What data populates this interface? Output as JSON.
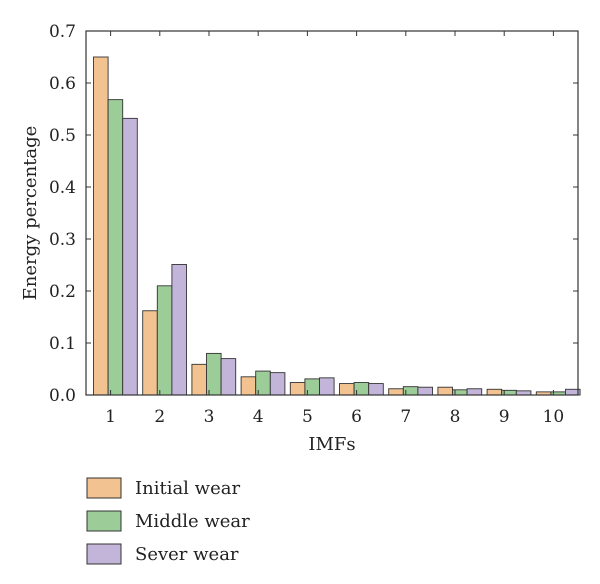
{
  "chart_data": {
    "type": "bar",
    "title": "",
    "xlabel": "IMFs",
    "ylabel": "Energy percentage",
    "categories": [
      "1",
      "2",
      "3",
      "4",
      "5",
      "6",
      "7",
      "8",
      "9",
      "10"
    ],
    "ylim": [
      0,
      0.7
    ],
    "yticks": [
      "0.0",
      "0.1",
      "0.2",
      "0.3",
      "0.4",
      "0.5",
      "0.6",
      "0.7"
    ],
    "grid": false,
    "legend_position": "bottom-left",
    "series": [
      {
        "name": "Initial wear",
        "color": "#f2c290",
        "values": [
          0.65,
          0.162,
          0.059,
          0.035,
          0.024,
          0.022,
          0.012,
          0.015,
          0.011,
          0.006
        ]
      },
      {
        "name": "Middle wear",
        "color": "#9ccc98",
        "values": [
          0.568,
          0.21,
          0.08,
          0.046,
          0.031,
          0.024,
          0.016,
          0.01,
          0.009,
          0.006
        ]
      },
      {
        "name": "Sever wear",
        "color": "#c3b4da",
        "values": [
          0.532,
          0.251,
          0.07,
          0.043,
          0.033,
          0.022,
          0.015,
          0.012,
          0.008,
          0.011
        ]
      }
    ]
  }
}
